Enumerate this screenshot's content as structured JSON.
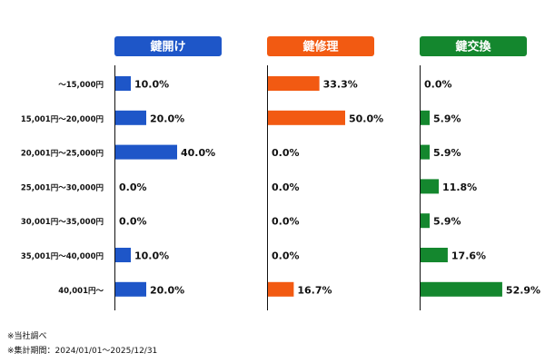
{
  "chart_data": {
    "type": "bar",
    "orientation": "horizontal",
    "categories": [
      "～15,000円",
      "15,001円～20,000円",
      "20,001円～25,000円",
      "25,001円～30,000円",
      "30,001円～35,000円",
      "35,001円～40,000円",
      "40,001円～"
    ],
    "series": [
      {
        "name": "鍵開け",
        "color": "#1E56C8",
        "values": [
          10.0,
          20.0,
          40.0,
          0.0,
          0.0,
          10.0,
          20.0
        ]
      },
      {
        "name": "鍵修理",
        "color": "#F25A12",
        "values": [
          33.3,
          50.0,
          0.0,
          0.0,
          0.0,
          0.0,
          16.7
        ]
      },
      {
        "name": "鍵交換",
        "color": "#14872E",
        "values": [
          0.0,
          5.9,
          5.9,
          11.8,
          5.9,
          17.6,
          52.9
        ]
      }
    ],
    "value_format": "{v}%",
    "value_scale_max": 100,
    "grid": false
  },
  "notes": [
    "※当社調べ",
    "※集計期間：2024/01/01～2025/12/31"
  ]
}
